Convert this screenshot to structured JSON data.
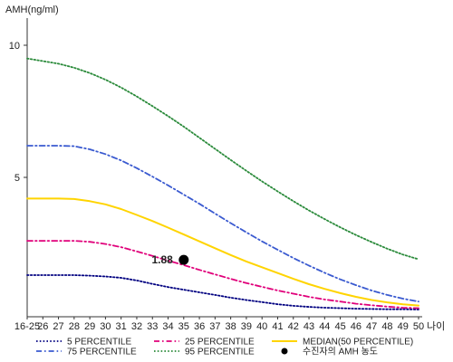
{
  "chart_data": {
    "type": "line",
    "ylabel": "AMH(ng/ml)",
    "xlabel": "나이",
    "ylim": [
      0,
      11
    ],
    "yticks": [
      5,
      10
    ],
    "grid": false,
    "legend_position": "bottom",
    "categories": [
      "16-25",
      "26",
      "27",
      "28",
      "29",
      "30",
      "31",
      "32",
      "33",
      "34",
      "35",
      "36",
      "37",
      "38",
      "39",
      "40",
      "41",
      "42",
      "43",
      "44",
      "45",
      "46",
      "47",
      "48",
      "49",
      "50"
    ],
    "series": [
      {
        "name": "5 PERCENTILE",
        "color": "#000080",
        "style": "dotted",
        "values": [
          1.3,
          1.3,
          1.3,
          1.3,
          1.28,
          1.25,
          1.2,
          1.1,
          0.97,
          0.85,
          0.75,
          0.65,
          0.55,
          0.45,
          0.36,
          0.28,
          0.2,
          0.14,
          0.1,
          0.07,
          0.05,
          0.03,
          0.02,
          0.01,
          0.01,
          0
        ]
      },
      {
        "name": "25 PERCENTILE",
        "color": "#e0007a",
        "style": "dashdot",
        "values": [
          2.6,
          2.6,
          2.6,
          2.6,
          2.56,
          2.48,
          2.36,
          2.2,
          2.03,
          1.85,
          1.68,
          1.5,
          1.33,
          1.16,
          1.0,
          0.86,
          0.72,
          0.6,
          0.48,
          0.38,
          0.3,
          0.22,
          0.16,
          0.11,
          0.07,
          0.05
        ]
      },
      {
        "name": "MEDIAN(50 PERCENTILE)",
        "color": "#ffd400",
        "style": "solid",
        "values": [
          4.2,
          4.2,
          4.2,
          4.18,
          4.1,
          3.98,
          3.8,
          3.58,
          3.35,
          3.1,
          2.84,
          2.58,
          2.32,
          2.06,
          1.82,
          1.6,
          1.38,
          1.16,
          0.96,
          0.78,
          0.62,
          0.48,
          0.36,
          0.27,
          0.2,
          0.15
        ]
      },
      {
        "name": "75 PERCENTILE",
        "color": "#3a5ad0",
        "style": "dashdot",
        "values": [
          6.2,
          6.2,
          6.2,
          6.18,
          6.06,
          5.88,
          5.64,
          5.35,
          5.03,
          4.7,
          4.35,
          4.0,
          3.63,
          3.27,
          2.92,
          2.58,
          2.26,
          1.95,
          1.66,
          1.39,
          1.14,
          0.92,
          0.72,
          0.55,
          0.41,
          0.3
        ]
      },
      {
        "name": "95 PERCENTILE",
        "color": "#2a8a3a",
        "style": "dotted",
        "values": [
          9.5,
          9.4,
          9.3,
          9.15,
          8.95,
          8.7,
          8.4,
          8.06,
          7.7,
          7.32,
          6.92,
          6.5,
          6.08,
          5.66,
          5.25,
          4.85,
          4.47,
          4.1,
          3.75,
          3.42,
          3.11,
          2.82,
          2.55,
          2.3,
          2.08,
          1.9
        ]
      }
    ],
    "highlight_point": {
      "name": "수진자의 AMH 농도",
      "x": "35",
      "y": 1.88,
      "label": "1.88",
      "color": "#000000"
    },
    "legend_order": [
      "5 PERCENTILE",
      "25 PERCENTILE",
      "MEDIAN(50 PERCENTILE)",
      "75 PERCENTILE",
      "95 PERCENTILE",
      "수진자의 AMH 농도"
    ]
  }
}
